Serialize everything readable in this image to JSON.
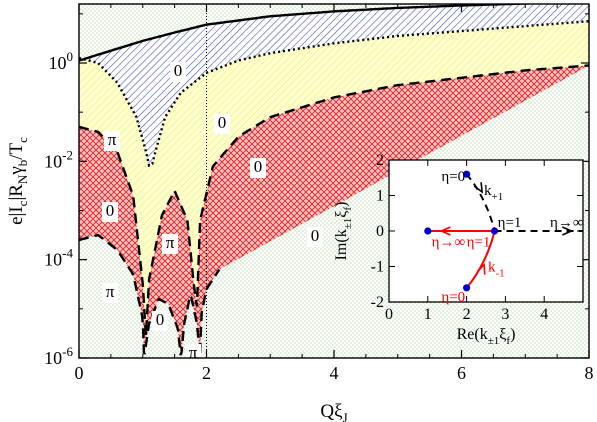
{
  "chart_data": [
    {
      "type": "area",
      "xlabel": "Qξ_J",
      "ylabel": "e|I_c|R_N γ_b/T_c",
      "xlim": [
        0,
        8
      ],
      "ylim_log10": [
        -6,
        1.2
      ],
      "x_ticks": [
        0,
        2,
        4,
        6,
        8
      ],
      "y_ticks": [
        "10^-6",
        "10^-4",
        "10^-2",
        "10^0"
      ],
      "vertical_reference_line_x": 2,
      "series": [
        {
          "style": "solid",
          "x": [
            0,
            0.5,
            1,
            1.5,
            2,
            3,
            4,
            5,
            6,
            7,
            8
          ],
          "log10_y": [
            0.05,
            0.25,
            0.45,
            0.62,
            0.78,
            0.95,
            1.05,
            1.12,
            1.17,
            1.21,
            1.25
          ]
        },
        {
          "style": "dotted",
          "x": [
            0,
            0.3,
            0.6,
            0.9,
            1.05,
            1.12,
            1.2,
            1.35,
            1.6,
            2,
            2.5,
            3,
            4,
            5,
            6,
            7,
            8
          ],
          "log10_y": [
            0.1,
            0.0,
            -0.4,
            -1.1,
            -1.8,
            -2.2,
            -1.8,
            -1.1,
            -0.6,
            -0.2,
            0.05,
            0.2,
            0.4,
            0.55,
            0.65,
            0.75,
            0.85
          ]
        },
        {
          "style": "dashed",
          "x": [
            0,
            0.3,
            0.6,
            0.85,
            1.0,
            1.03,
            1.1,
            1.3,
            1.5,
            1.7,
            1.8,
            1.82,
            1.9,
            2.1,
            2.5,
            3,
            4,
            5,
            6,
            7,
            8
          ],
          "log10_y": [
            -1.3,
            -1.4,
            -1.8,
            -2.7,
            -4.5,
            -6.0,
            -4.4,
            -3.1,
            -2.6,
            -3.2,
            -4.5,
            -6.0,
            -3.2,
            -2.1,
            -1.5,
            -1.1,
            -0.7,
            -0.45,
            -0.3,
            -0.15,
            -0.05
          ]
        },
        {
          "style": "dashed",
          "x": [
            0,
            0.3,
            0.6,
            0.85,
            1.0,
            1.02,
            1.1,
            1.25,
            1.4,
            1.55,
            1.6,
            1.65,
            1.75,
            1.85,
            1.9,
            1.92,
            2.0,
            2.2
          ],
          "log10_y": [
            -3.6,
            -3.5,
            -3.8,
            -4.3,
            -5.2,
            -6.0,
            -5.3,
            -4.8,
            -4.9,
            -5.4,
            -6.0,
            -5.3,
            -4.7,
            -5.3,
            -6.0,
            -5.1,
            -4.6,
            -4.2
          ]
        }
      ],
      "region_labels": [
        {
          "text": "0",
          "x": 3.7,
          "log10_y": 0.45
        },
        {
          "text": "π",
          "x": 1.23,
          "log10_y": -1.5
        },
        {
          "text": "0",
          "x": 4.6,
          "log10_y": -0.55
        },
        {
          "text": "0",
          "x": 5.4,
          "log10_y": -1.7
        },
        {
          "text": "0",
          "x": 1.18,
          "log10_y": -3.25
        },
        {
          "text": "π",
          "x": 3.1,
          "log10_y": -3.65
        },
        {
          "text": "0",
          "x": 5.5,
          "log10_y": -3.55
        },
        {
          "text": "π",
          "x": 1.05,
          "log10_y": -4.75
        },
        {
          "text": "0",
          "x": 3.05,
          "log10_y": -5.25
        },
        {
          "text": "π",
          "x": 4.3,
          "log10_y": -5.75
        }
      ]
    },
    {
      "type": "line",
      "xlabel": "Re(k_±1 ξ_f)",
      "ylabel": "Im(k_±1 ξ_f)",
      "xlim": [
        0,
        5
      ],
      "ylim": [
        -2,
        2
      ],
      "x_ticks": [
        0,
        1,
        2,
        3,
        4
      ],
      "y_ticks": [
        -2,
        -1,
        0,
        1,
        2
      ],
      "series": [
        {
          "name": "k_+1",
          "color": "#000000",
          "style": "dashed",
          "x": [
            2,
            2.35,
            2.6,
            2.72
          ],
          "y": [
            1.6,
            1.15,
            0.55,
            0
          ]
        },
        {
          "name": "k_+1 (η→∞)",
          "color": "#000000",
          "style": "dashed",
          "x": [
            2.72,
            5
          ],
          "y": [
            0,
            0
          ]
        },
        {
          "name": "k_-1",
          "color": "#ff0000",
          "style": "solid",
          "x": [
            2,
            2.35,
            2.6,
            2.72
          ],
          "y": [
            -1.6,
            -1.15,
            -0.55,
            0
          ]
        },
        {
          "name": "k_-1 (η→∞)",
          "color": "#ff0000",
          "style": "solid",
          "x": [
            2.72,
            1
          ],
          "y": [
            0,
            0
          ]
        }
      ],
      "points": [
        {
          "x": 2,
          "y": 1.6,
          "color": "#0000cc"
        },
        {
          "x": 2.72,
          "y": 0,
          "color": "#0000cc"
        },
        {
          "x": 1,
          "y": 0,
          "color": "#0000cc"
        },
        {
          "x": 2,
          "y": -1.6,
          "color": "#0000cc"
        }
      ],
      "annotations": [
        {
          "text": "η=0",
          "x": 1.35,
          "y": 1.55,
          "color": "#000000"
        },
        {
          "text": "k",
          "sub": "+1",
          "x": 2.45,
          "y": 1.15,
          "color": "#000000"
        },
        {
          "text": "η=1",
          "x": 2.8,
          "y": 0.25,
          "color": "#000000"
        },
        {
          "text": "η→∞",
          "x": 4.15,
          "y": 0.25,
          "color": "#000000"
        },
        {
          "text": "η→∞",
          "x": 1.1,
          "y": -0.3,
          "color": "#ff0000"
        },
        {
          "text": "η=1",
          "x": 2.0,
          "y": -0.3,
          "color": "#ff0000"
        },
        {
          "text": "k",
          "sub": "-1",
          "x": 2.55,
          "y": -1.0,
          "color": "#ff0000"
        },
        {
          "text": "η=0",
          "x": 1.35,
          "y": -1.85,
          "color": "#ff0000"
        }
      ]
    }
  ],
  "colors": {
    "blue_hatch": "#3344bb",
    "yellow_fill": "#ffffcc",
    "yellow_hatch": "#e6e680",
    "red_fill": "#ffb3b3",
    "red_hatch": "#dd2222",
    "green_dot": "#99cc88"
  }
}
